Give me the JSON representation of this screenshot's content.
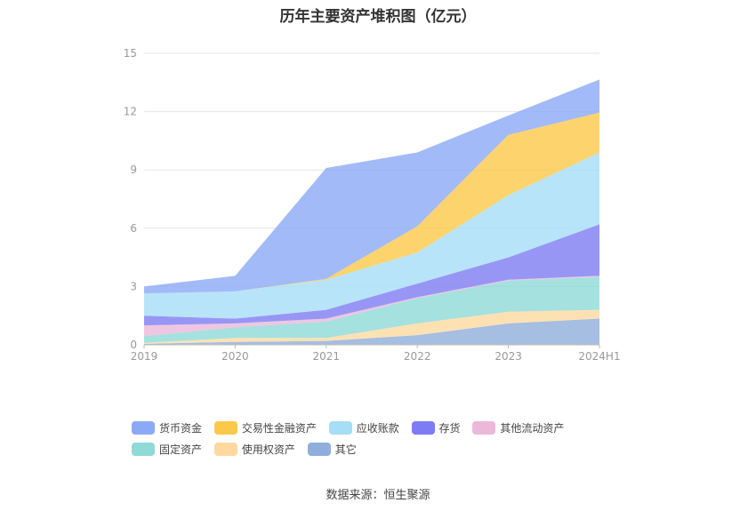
{
  "chart_data": {
    "type": "area",
    "stacked": true,
    "title": "历年主要资产堆积图（亿元）",
    "categories": [
      "2019",
      "2020",
      "2021",
      "2022",
      "2023",
      "2024H1"
    ],
    "yticks": [
      "0",
      "3",
      "6",
      "9",
      "12",
      "15"
    ],
    "ylim": [
      0,
      15
    ],
    "grid": true,
    "legend_position": "bottom",
    "series": [
      {
        "name": "其它",
        "color": "#8FAEDB",
        "values": [
          0.05,
          0.15,
          0.2,
          0.5,
          1.1,
          1.35
        ]
      },
      {
        "name": "使用权资产",
        "color": "#FDD9A0",
        "values": [
          0.05,
          0.2,
          0.15,
          0.6,
          0.6,
          0.45
        ]
      },
      {
        "name": "固定资产",
        "color": "#8FD9D6",
        "values": [
          0.35,
          0.55,
          0.85,
          1.3,
          1.6,
          1.7
        ]
      },
      {
        "name": "其他流动资产",
        "color": "#EBB8DA",
        "values": [
          0.55,
          0.2,
          0.15,
          0.05,
          0.05,
          0.05
        ]
      },
      {
        "name": "存货",
        "color": "#7E7CF2",
        "values": [
          0.5,
          0.25,
          0.45,
          0.7,
          1.15,
          2.65
        ]
      },
      {
        "name": "应收账款",
        "color": "#A6DDF7",
        "values": [
          1.15,
          1.4,
          1.55,
          1.6,
          3.2,
          3.7
        ]
      },
      {
        "name": "交易性金融资产",
        "color": "#FCC84A",
        "values": [
          0,
          0,
          0.05,
          1.35,
          3.1,
          2.05
        ]
      },
      {
        "name": "货币资金",
        "color": "#8BA9F6",
        "values": [
          0.35,
          0.8,
          5.7,
          3.8,
          1.0,
          1.7
        ]
      }
    ]
  },
  "legend_order": [
    "货币资金",
    "交易性金融资产",
    "应收账款",
    "存货",
    "其他流动资产",
    "固定资产",
    "使用权资产",
    "其它"
  ],
  "legend": [
    {
      "label": "货币资金",
      "color": "#8BA9F6"
    },
    {
      "label": "交易性金融资产",
      "color": "#FCC84A"
    },
    {
      "label": "应收账款",
      "color": "#A6DDF7"
    },
    {
      "label": "存货",
      "color": "#7E7CF2"
    },
    {
      "label": "其他流动资产",
      "color": "#EBB8DA"
    },
    {
      "label": "固定资产",
      "color": "#8FD9D6"
    },
    {
      "label": "使用权资产",
      "color": "#FDD9A0"
    },
    {
      "label": "其它",
      "color": "#8FAEDB"
    }
  ],
  "source": "数据来源：恒生聚源"
}
